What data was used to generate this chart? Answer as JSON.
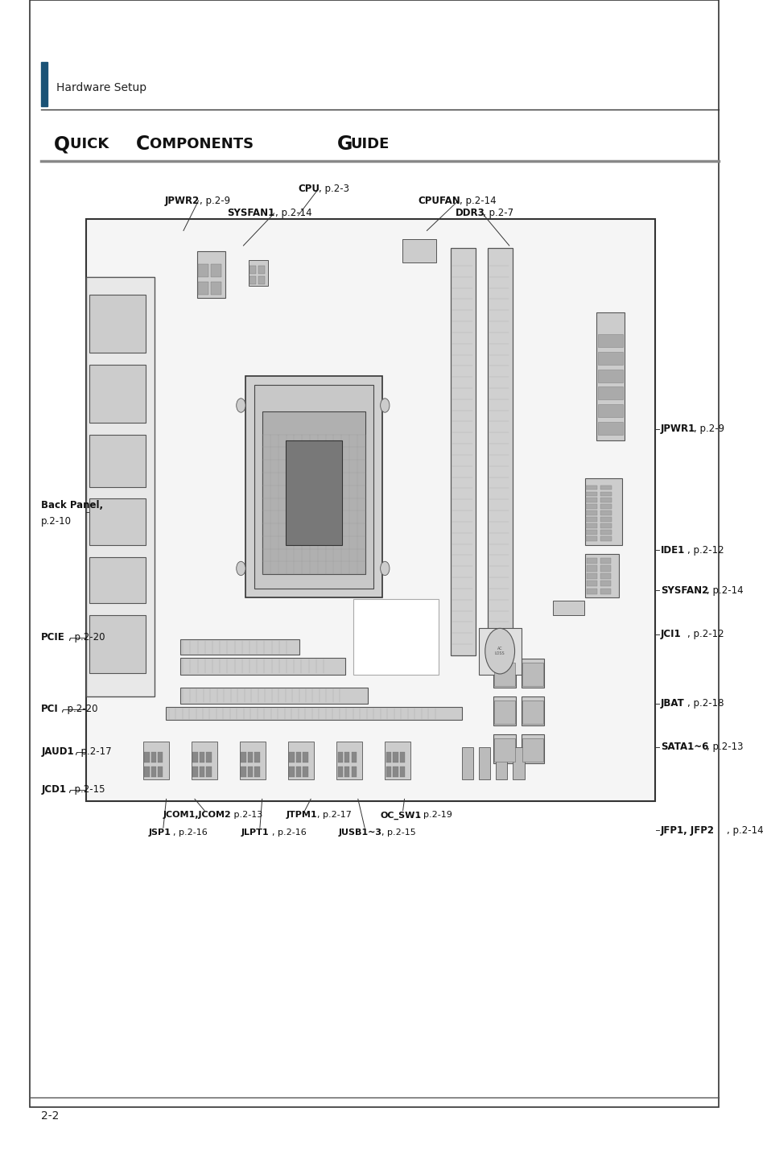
{
  "page_bg": "#ffffff",
  "header_text": "Hardware Setup",
  "title_text": "Quick Components Guide",
  "page_number": "2-2",
  "text_color": "#111111",
  "board_bx0": 0.115,
  "board_by0": 0.305,
  "board_bw": 0.76,
  "board_bh": 0.505,
  "outer_border": [
    0.04,
    0.04,
    0.92,
    0.96
  ]
}
